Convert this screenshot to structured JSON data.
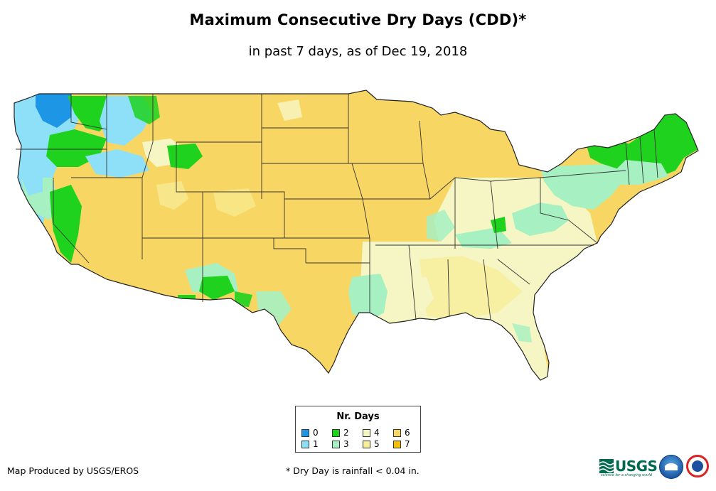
{
  "header": {
    "title": "Maximum Consecutive Dry Days (CDD)*",
    "subtitle": "in past 7 days, as of Dec 19, 2018"
  },
  "legend": {
    "title": "Nr. Days",
    "items": [
      {
        "label": "0",
        "color": "#1e96e6"
      },
      {
        "label": "1",
        "color": "#8ee0f8"
      },
      {
        "label": "2",
        "color": "#1ed21e"
      },
      {
        "label": "3",
        "color": "#a6f0c2"
      },
      {
        "label": "4",
        "color": "#f6f6c4"
      },
      {
        "label": "5",
        "color": "#f8ee9a"
      },
      {
        "label": "6",
        "color": "#f8d664"
      },
      {
        "label": "7",
        "color": "#f6c000"
      }
    ]
  },
  "footer": {
    "credit": "Map Produced by USGS/EROS",
    "footnote": "* Dry Day is rainfall < 0.04 in."
  },
  "logos": {
    "usgs": "USGS",
    "usgs_tagline": "science for a changing world",
    "noaa": "noaa-logo",
    "nws": "nws-logo"
  },
  "map_colors": {
    "state_border": "#333333",
    "coast": "#222222"
  }
}
